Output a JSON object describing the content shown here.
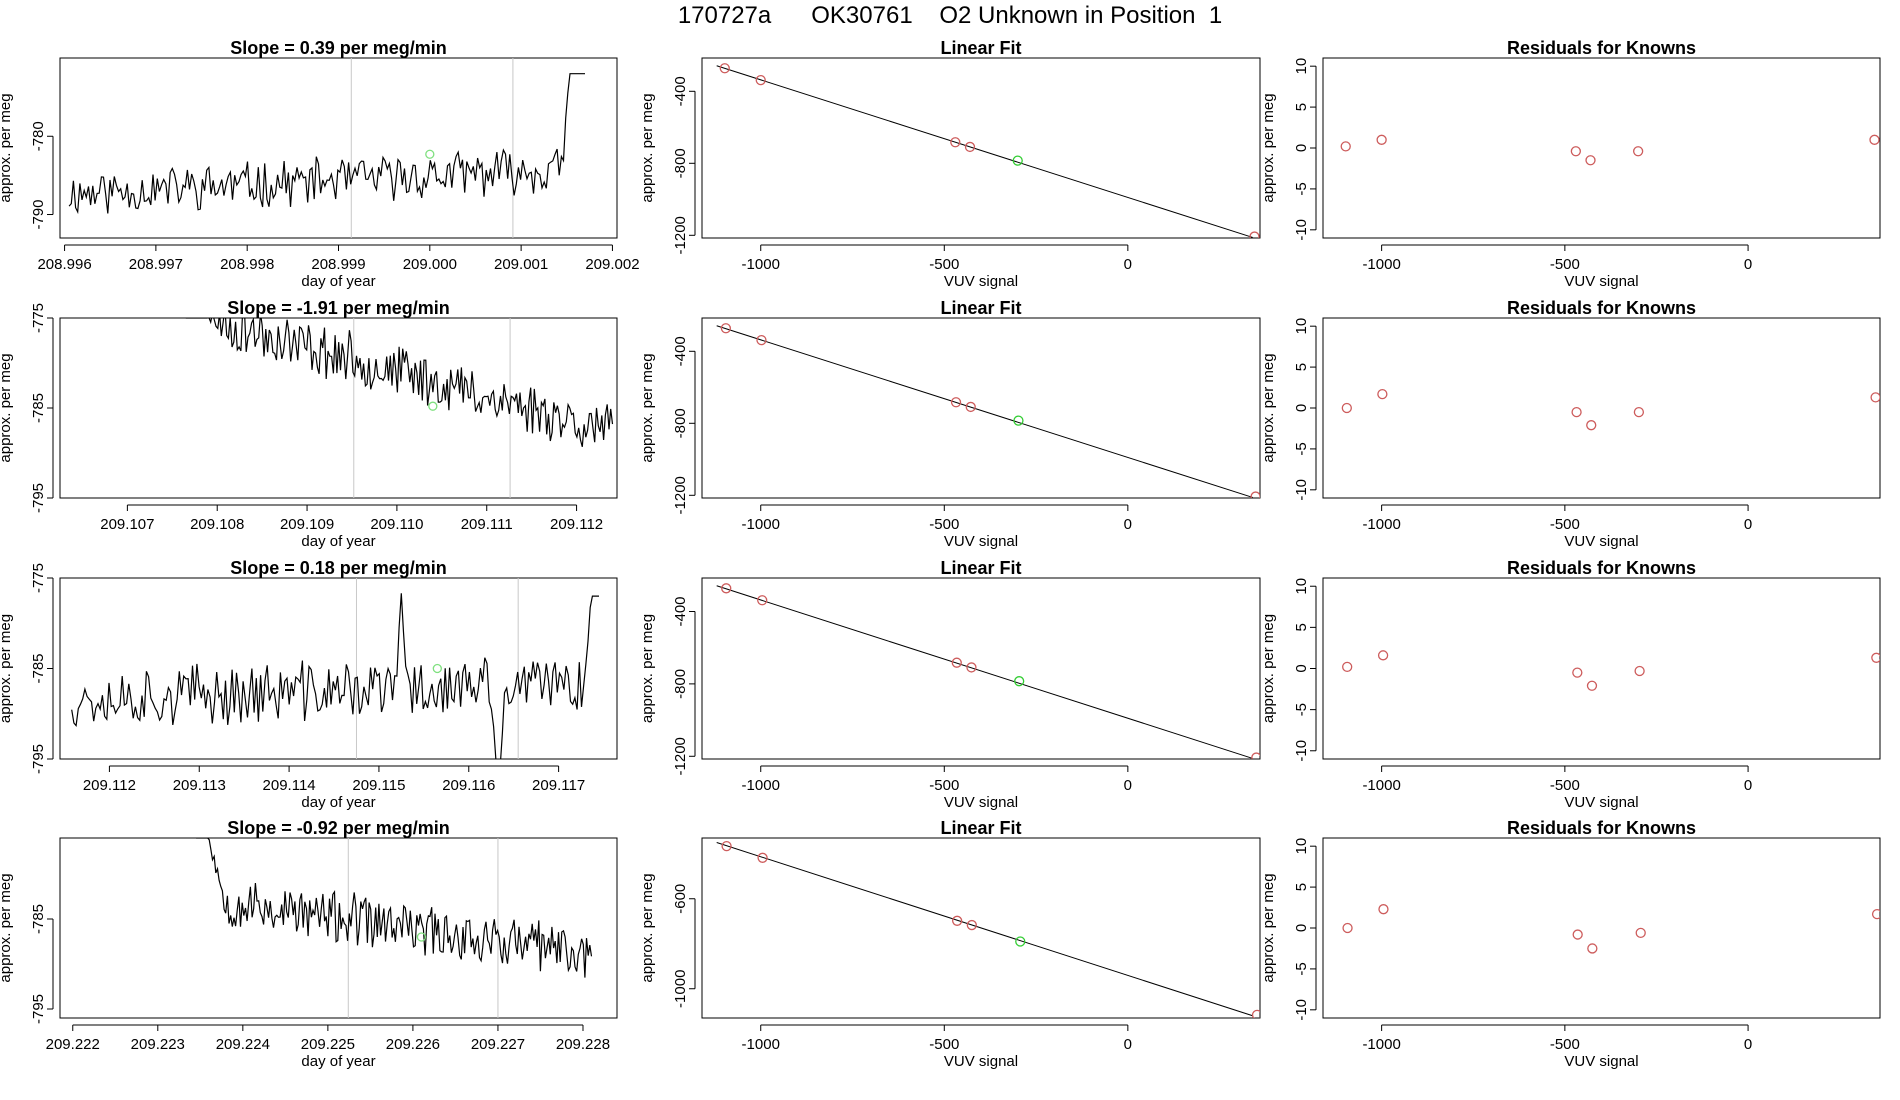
{
  "page": {
    "title": "170727a      OK30761    O2 Unknown in Position  1"
  },
  "chart_data": [
    {
      "type": "line",
      "panel": "slope",
      "row": 1,
      "title": "Slope =  0.39  per meg/min",
      "xlabel": "day of year",
      "ylabel": "approx. per meg",
      "xlim": [
        208.99595,
        209.00205
      ],
      "ylim": [
        -793,
        -770
      ],
      "xticks": [
        "208.996",
        "208.997",
        "208.998",
        "208.999",
        "209.000",
        "209.001",
        "209.002"
      ],
      "xtick_values": [
        208.996,
        208.997,
        208.998,
        208.999,
        209.0,
        209.001,
        209.002
      ],
      "yticks": [
        "-780",
        "-790"
      ],
      "ytick_values": [
        -780,
        -790
      ],
      "vlines": [
        208.99914,
        209.00091
      ],
      "x_start": 208.99605,
      "x_end": 209.0017,
      "baseline": -785.7,
      "trend_per_day": 0.39,
      "noise": 1.3,
      "tail": {
        "x": 209.00155,
        "to": -770
      },
      "marker": {
        "x": 209.0,
        "y": -782.3,
        "color": "#7fe07f"
      },
      "seed": 11
    },
    {
      "type": "scatter",
      "panel": "fit",
      "row": 1,
      "title": "Linear Fit",
      "xlabel": "VUV signal",
      "ylabel": "approx. per meg",
      "xlim": [
        -1160,
        360
      ],
      "ylim": [
        -1215,
        -215
      ],
      "xticks": [
        "-1000",
        "-500",
        "0"
      ],
      "xtick_values": [
        -1000,
        -500,
        0
      ],
      "yticks": [
        "-400",
        "-800",
        "-1200"
      ],
      "ytick_values": [
        -400,
        -800,
        -1200
      ],
      "fit_line": {
        "x": [
          -1120,
          340
        ],
        "y": [
          -258,
          -1212
        ]
      },
      "points": [
        {
          "x": -1098,
          "y": -272,
          "color": "#cd5c5c"
        },
        {
          "x": -1000,
          "y": -338,
          "color": "#cd5c5c"
        },
        {
          "x": -470,
          "y": -683,
          "color": "#cd5c5c"
        },
        {
          "x": -430,
          "y": -709,
          "color": "#cd5c5c"
        },
        {
          "x": -300,
          "y": -785,
          "color": "#32cd32"
        },
        {
          "x": 345,
          "y": -1207,
          "color": "#cd5c5c"
        }
      ]
    },
    {
      "type": "scatter",
      "panel": "residuals",
      "row": 1,
      "title": "Residuals for Knowns",
      "xlabel": "VUV signal",
      "ylabel": "approx. per meg",
      "xlim": [
        -1160,
        360
      ],
      "ylim": [
        -11,
        11
      ],
      "xticks": [
        "-1000",
        "-500",
        "0"
      ],
      "xtick_values": [
        -1000,
        -500,
        0
      ],
      "yticks": [
        "10",
        "5",
        "0",
        "-5",
        "-10"
      ],
      "ytick_values": [
        10,
        5,
        0,
        -5,
        -10
      ],
      "points": [
        {
          "x": -1098,
          "y": 0.2,
          "color": "#cd5c5c"
        },
        {
          "x": -1000,
          "y": 1.0,
          "color": "#cd5c5c"
        },
        {
          "x": -470,
          "y": -0.4,
          "color": "#cd5c5c"
        },
        {
          "x": -430,
          "y": -1.5,
          "color": "#cd5c5c"
        },
        {
          "x": -300,
          "y": -0.4,
          "color": "#cd5c5c"
        },
        {
          "x": 345,
          "y": 1.0,
          "color": "#cd5c5c"
        }
      ]
    },
    {
      "type": "line",
      "panel": "slope",
      "row": 2,
      "title": "Slope =  -1.91  per meg/min",
      "xlabel": "day of year",
      "ylabel": "approx. per meg",
      "xlim": [
        209.10625,
        209.11245
      ],
      "ylim": [
        -795,
        -775
      ],
      "xticks": [
        "209.107",
        "209.108",
        "209.109",
        "209.110",
        "209.111",
        "209.112"
      ],
      "xtick_values": [
        209.107,
        209.108,
        209.109,
        209.11,
        209.111,
        209.112
      ],
      "yticks": [
        "-775",
        "-785",
        "-795"
      ],
      "ytick_values": [
        -775,
        -785,
        -795
      ],
      "vlines": [
        209.10952,
        209.11126
      ],
      "x_start": 209.10765,
      "x_end": 209.1124,
      "baseline": -781.0,
      "trend_per_day": -1.91,
      "noise": 1.3,
      "head": {
        "x": 209.1079,
        "from": -775
      },
      "marker": {
        "x": 209.1104,
        "y": -784.8,
        "color": "#7fe07f"
      },
      "seed": 23
    },
    {
      "type": "scatter",
      "panel": "fit",
      "row": 2,
      "title": "Linear Fit",
      "xlabel": "VUV signal",
      "ylabel": "approx. per meg",
      "xlim": [
        -1160,
        360
      ],
      "ylim": [
        -1215,
        -215
      ],
      "xticks": [
        "-1000",
        "-500",
        "0"
      ],
      "xtick_values": [
        -1000,
        -500,
        0
      ],
      "yticks": [
        "-400",
        "-800",
        "-1200"
      ],
      "ytick_values": [
        -400,
        -800,
        -1200
      ],
      "fit_line": {
        "x": [
          -1120,
          340
        ],
        "y": [
          -258,
          -1212
        ]
      },
      "points": [
        {
          "x": -1095,
          "y": -272,
          "color": "#cd5c5c"
        },
        {
          "x": -998,
          "y": -338,
          "color": "#cd5c5c"
        },
        {
          "x": -468,
          "y": -683,
          "color": "#cd5c5c"
        },
        {
          "x": -428,
          "y": -709,
          "color": "#cd5c5c"
        },
        {
          "x": -298,
          "y": -785,
          "color": "#32cd32"
        },
        {
          "x": 348,
          "y": -1207,
          "color": "#cd5c5c"
        }
      ]
    },
    {
      "type": "scatter",
      "panel": "residuals",
      "row": 2,
      "title": "Residuals for Knowns",
      "xlabel": "VUV signal",
      "ylabel": "approx. per meg",
      "xlim": [
        -1160,
        360
      ],
      "ylim": [
        -11,
        11
      ],
      "xticks": [
        "-1000",
        "-500",
        "0"
      ],
      "xtick_values": [
        -1000,
        -500,
        0
      ],
      "yticks": [
        "10",
        "5",
        "0",
        "-5",
        "-10"
      ],
      "ytick_values": [
        10,
        5,
        0,
        -5,
        -10
      ],
      "points": [
        {
          "x": -1095,
          "y": 0.0,
          "color": "#cd5c5c"
        },
        {
          "x": -998,
          "y": 1.7,
          "color": "#cd5c5c"
        },
        {
          "x": -468,
          "y": -0.5,
          "color": "#cd5c5c"
        },
        {
          "x": -428,
          "y": -2.1,
          "color": "#cd5c5c"
        },
        {
          "x": -298,
          "y": -0.5,
          "color": "#cd5c5c"
        },
        {
          "x": 348,
          "y": 1.3,
          "color": "#cd5c5c"
        }
      ]
    },
    {
      "type": "line",
      "panel": "slope",
      "row": 3,
      "title": "Slope =  0.18  per meg/min",
      "xlabel": "day of year",
      "ylabel": "approx. per meg",
      "xlim": [
        209.11145,
        209.11765
      ],
      "ylim": [
        -795,
        -775
      ],
      "xticks": [
        "209.112",
        "209.113",
        "209.114",
        "209.115",
        "209.116",
        "209.117"
      ],
      "xtick_values": [
        209.112,
        209.113,
        209.114,
        209.115,
        209.116,
        209.117
      ],
      "yticks": [
        "-775",
        "-785",
        "-795"
      ],
      "ytick_values": [
        -775,
        -785,
        -795
      ],
      "vlines": [
        209.11475,
        209.11655
      ],
      "x_start": 209.11158,
      "x_end": 209.11745,
      "baseline": -787.5,
      "trend_per_day": 0.18,
      "noise": 1.5,
      "spike": {
        "x": 209.11525,
        "to": -776.5
      },
      "dip": {
        "x": 209.11633,
        "to": -795
      },
      "tail": {
        "x": 209.11738,
        "to": -775
      },
      "marker": {
        "x": 209.11565,
        "y": -785.0,
        "color": "#7fe07f"
      },
      "seed": 37
    },
    {
      "type": "scatter",
      "panel": "fit",
      "row": 3,
      "title": "Linear Fit",
      "xlabel": "VUV signal",
      "ylabel": "approx. per meg",
      "xlim": [
        -1160,
        360
      ],
      "ylim": [
        -1215,
        -215
      ],
      "xticks": [
        "-1000",
        "-500",
        "0"
      ],
      "xtick_values": [
        -1000,
        -500,
        0
      ],
      "yticks": [
        "-400",
        "-800",
        "-1200"
      ],
      "ytick_values": [
        -400,
        -800,
        -1200
      ],
      "fit_line": {
        "x": [
          -1120,
          340
        ],
        "y": [
          -258,
          -1212
        ]
      },
      "points": [
        {
          "x": -1094,
          "y": -272,
          "color": "#cd5c5c"
        },
        {
          "x": -996,
          "y": -338,
          "color": "#cd5c5c"
        },
        {
          "x": -466,
          "y": -683,
          "color": "#cd5c5c"
        },
        {
          "x": -426,
          "y": -709,
          "color": "#cd5c5c"
        },
        {
          "x": -296,
          "y": -785,
          "color": "#32cd32"
        },
        {
          "x": 350,
          "y": -1207,
          "color": "#cd5c5c"
        }
      ]
    },
    {
      "type": "scatter",
      "panel": "residuals",
      "row": 3,
      "title": "Residuals for Knowns",
      "xlabel": "VUV signal",
      "ylabel": "approx. per meg",
      "xlim": [
        -1160,
        360
      ],
      "ylim": [
        -11,
        11
      ],
      "xticks": [
        "-1000",
        "-500",
        "0"
      ],
      "xtick_values": [
        -1000,
        -500,
        0
      ],
      "yticks": [
        "10",
        "5",
        "0",
        "-5",
        "-10"
      ],
      "ytick_values": [
        10,
        5,
        0,
        -5,
        -10
      ],
      "points": [
        {
          "x": -1094,
          "y": 0.2,
          "color": "#cd5c5c"
        },
        {
          "x": -996,
          "y": 1.6,
          "color": "#cd5c5c"
        },
        {
          "x": -466,
          "y": -0.5,
          "color": "#cd5c5c"
        },
        {
          "x": -426,
          "y": -2.1,
          "color": "#cd5c5c"
        },
        {
          "x": -296,
          "y": -0.3,
          "color": "#cd5c5c"
        },
        {
          "x": 350,
          "y": 1.3,
          "color": "#cd5c5c"
        }
      ]
    },
    {
      "type": "line",
      "panel": "slope",
      "row": 4,
      "title": "Slope =  -0.92  per meg/min",
      "xlabel": "day of year",
      "ylabel": "approx. per meg",
      "xlim": [
        209.22185,
        209.2284
      ],
      "ylim": [
        -796,
        -776
      ],
      "xticks": [
        "209.222",
        "209.223",
        "209.224",
        "209.225",
        "209.226",
        "209.227",
        "209.228"
      ],
      "xtick_values": [
        209.222,
        209.223,
        209.224,
        209.225,
        209.226,
        209.227,
        209.228
      ],
      "yticks": [
        "-785",
        "-795"
      ],
      "ytick_values": [
        -785,
        -795
      ],
      "vlines": [
        209.22524,
        209.227
      ],
      "x_start": 209.22345,
      "x_end": 209.2281,
      "baseline": -785.8,
      "trend_per_day": -0.92,
      "noise": 1.3,
      "head": {
        "x": 209.2236,
        "from": -776
      },
      "marker": {
        "x": 209.2261,
        "y": -787.0,
        "color": "#7fe07f"
      },
      "seed": 53
    },
    {
      "type": "scatter",
      "panel": "fit",
      "row": 4,
      "title": "Linear Fit",
      "xlabel": "VUV signal",
      "ylabel": "approx. per meg",
      "xlim": [
        -1160,
        360
      ],
      "ylim": [
        -1130,
        -330
      ],
      "xticks": [
        "-1000",
        "-500",
        "0"
      ],
      "xtick_values": [
        -1000,
        -500,
        0
      ],
      "yticks": [
        "-600",
        "-1000"
      ],
      "ytick_values": [
        -600,
        -1000
      ],
      "fit_line": {
        "x": [
          -1120,
          340
        ],
        "y": [
          -350,
          -1120
        ]
      },
      "points": [
        {
          "x": -1093,
          "y": -366,
          "color": "#cd5c5c"
        },
        {
          "x": -995,
          "y": -418,
          "color": "#cd5c5c"
        },
        {
          "x": -465,
          "y": -698,
          "color": "#cd5c5c"
        },
        {
          "x": -425,
          "y": -717,
          "color": "#cd5c5c"
        },
        {
          "x": -293,
          "y": -790,
          "color": "#32cd32"
        },
        {
          "x": 352,
          "y": -1116,
          "color": "#cd5c5c"
        }
      ]
    },
    {
      "type": "scatter",
      "panel": "residuals",
      "row": 4,
      "title": "Residuals for Knowns",
      "xlabel": "VUV signal",
      "ylabel": "approx. per meg",
      "xlim": [
        -1160,
        360
      ],
      "ylim": [
        -11,
        11
      ],
      "xticks": [
        "-1000",
        "-500",
        "0"
      ],
      "xtick_values": [
        -1000,
        -500,
        0
      ],
      "yticks": [
        "10",
        "5",
        "0",
        "-5",
        "-10"
      ],
      "ytick_values": [
        10,
        5,
        0,
        -5,
        -10
      ],
      "points": [
        {
          "x": -1093,
          "y": 0.0,
          "color": "#cd5c5c"
        },
        {
          "x": -995,
          "y": 2.3,
          "color": "#cd5c5c"
        },
        {
          "x": -465,
          "y": -0.8,
          "color": "#cd5c5c"
        },
        {
          "x": -425,
          "y": -2.5,
          "color": "#cd5c5c"
        },
        {
          "x": -293,
          "y": -0.6,
          "color": "#cd5c5c"
        },
        {
          "x": 352,
          "y": 1.7,
          "color": "#cd5c5c"
        }
      ]
    }
  ]
}
